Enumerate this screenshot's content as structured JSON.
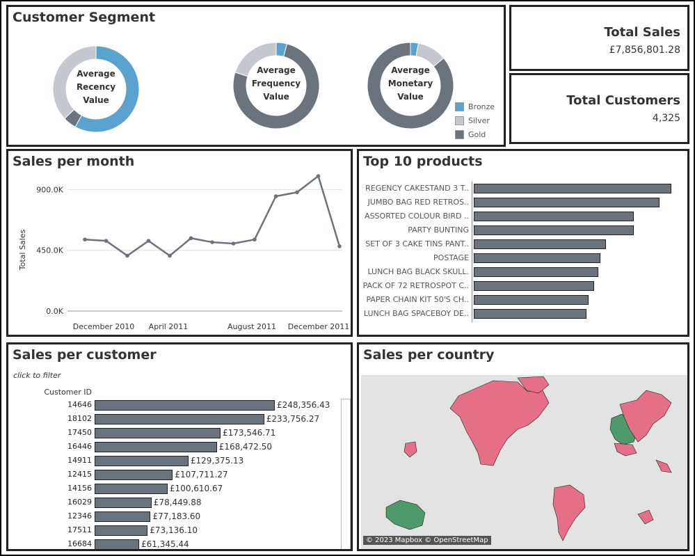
{
  "segment": {
    "title": "Customer Segment",
    "donuts": [
      {
        "label_lines": [
          "Average",
          "Recency",
          "Value"
        ],
        "slices": [
          {
            "name": "Bronze",
            "value": 0.58
          },
          {
            "name": "Gold",
            "value": 0.05
          },
          {
            "name": "Silver",
            "value": 0.37
          }
        ]
      },
      {
        "label_lines": [
          "Average",
          "Frequency",
          "Value"
        ],
        "slices": [
          {
            "name": "Bronze",
            "value": 0.04
          },
          {
            "name": "Gold",
            "value": 0.76
          },
          {
            "name": "Silver",
            "value": 0.2
          }
        ]
      },
      {
        "label_lines": [
          "Average",
          "Monetary",
          "Value"
        ],
        "slices": [
          {
            "name": "Bronze",
            "value": 0.03
          },
          {
            "name": "Silver",
            "value": 0.11
          },
          {
            "name": "Gold",
            "value": 0.86
          }
        ]
      }
    ],
    "legend": [
      {
        "name": "Bronze",
        "color": "#5ba3cf"
      },
      {
        "name": "Silver",
        "color": "#c5c9cf"
      },
      {
        "name": "Gold",
        "color": "#6b737c"
      }
    ]
  },
  "kpi": {
    "total_sales_title": "Total Sales",
    "total_sales_value": "£7,856,801.28",
    "total_customers_title": "Total Customers",
    "total_customers_value": "4,325"
  },
  "sales_month": {
    "title": "Sales per month",
    "ylabel": "Total Sales",
    "y_ticks": [
      "900.0K",
      "450.0K",
      "0.0K"
    ],
    "x_labels": [
      "December 2010",
      "April 2011",
      "August 2011",
      "December 2011"
    ]
  },
  "top_products": {
    "title": "Top 10 products"
  },
  "sales_customer": {
    "title": "Sales per customer",
    "subtitle": "click to filter",
    "header": "Customer ID"
  },
  "sales_country": {
    "title": "Sales per country",
    "credit": "© 2023 Mapbox © OpenStreetMap"
  },
  "chart_data": [
    {
      "type": "line",
      "title": "Sales per month",
      "ylabel": "Total Sales",
      "x": [
        "2010-12",
        "2011-01",
        "2011-02",
        "2011-03",
        "2011-04",
        "2011-05",
        "2011-06",
        "2011-07",
        "2011-08",
        "2011-09",
        "2011-10",
        "2011-11",
        "2011-12"
      ],
      "values": [
        530000,
        520000,
        410000,
        520000,
        410000,
        540000,
        510000,
        500000,
        530000,
        850000,
        880000,
        1000000,
        480000
      ],
      "ylim": [
        0,
        1000000
      ]
    },
    {
      "type": "bar",
      "title": "Top 10 products",
      "categories": [
        "REGENCY CAKESTAND 3 T..",
        "JUMBO BAG RED RETROS..",
        "ASSORTED COLOUR BIRD ..",
        "PARTY BUNTING",
        "SET OF 3 CAKE TINS PANT..",
        "POSTAGE",
        "LUNCH BAG  BLACK SKULL.",
        "PACK OF 72 RETROSPOT C..",
        "PAPER CHAIN KIT 50'S CH..",
        "LUNCH BAG SPACEBOY DE.."
      ],
      "values": [
        1.0,
        0.94,
        0.81,
        0.81,
        0.67,
        0.64,
        0.63,
        0.61,
        0.58,
        0.57
      ]
    },
    {
      "type": "bar",
      "title": "Sales per customer",
      "categories": [
        "14646",
        "18102",
        "17450",
        "16446",
        "14911",
        "12415",
        "14156",
        "16029",
        "12346",
        "17511",
        "16684"
      ],
      "values": [
        248356.43,
        233756.27,
        173546.71,
        168472.5,
        129375.13,
        107711.27,
        100610.67,
        78449.88,
        77183.6,
        73136.1,
        61345.44
      ],
      "labels": [
        "£248,356.43",
        "£233,756.27",
        "£173,546.71",
        "£168,472.50",
        "£129,375.13",
        "£107,711.27",
        "£100,610.67",
        "£78,449.88",
        "£77,183.60",
        "£73,136.10",
        "£61,345.44"
      ]
    }
  ]
}
